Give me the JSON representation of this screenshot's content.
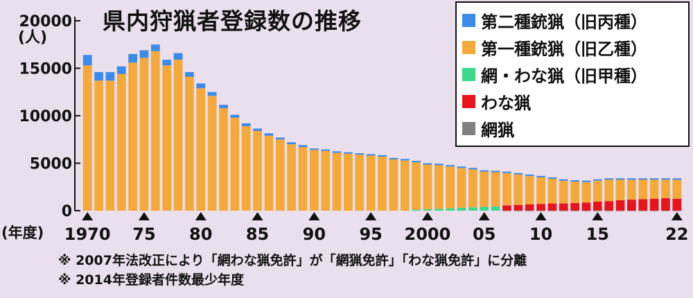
{
  "chart_data": {
    "type": "bar",
    "stacked": true,
    "title": "県内狩猟者登録数の推移",
    "ylabel": "(人)",
    "xlabel": "(年度)",
    "ylim": [
      0,
      20000
    ],
    "yticks": [
      0,
      5000,
      10000,
      15000,
      20000
    ],
    "xtick_labels": [
      {
        "year": 1970,
        "label": "1970"
      },
      {
        "year": 1975,
        "label": "75"
      },
      {
        "year": 1980,
        "label": "80"
      },
      {
        "year": 1985,
        "label": "85"
      },
      {
        "year": 1990,
        "label": "90"
      },
      {
        "year": 1995,
        "label": "95"
      },
      {
        "year": 2000,
        "label": "2000"
      },
      {
        "year": 2005,
        "label": "05"
      },
      {
        "year": 2010,
        "label": "10"
      },
      {
        "year": 2015,
        "label": "15"
      },
      {
        "year": 2022,
        "label": "22"
      }
    ],
    "years": [
      1970,
      1971,
      1972,
      1973,
      1974,
      1975,
      1976,
      1977,
      1978,
      1979,
      1980,
      1981,
      1982,
      1983,
      1984,
      1985,
      1986,
      1987,
      1988,
      1989,
      1990,
      1991,
      1992,
      1993,
      1994,
      1995,
      1996,
      1997,
      1998,
      1999,
      2000,
      2001,
      2002,
      2003,
      2004,
      2005,
      2006,
      2007,
      2008,
      2009,
      2010,
      2011,
      2012,
      2013,
      2014,
      2015,
      2016,
      2017,
      2018,
      2019,
      2020,
      2021,
      2022
    ],
    "legend_position": "top-right",
    "series": [
      {
        "name": "網猟",
        "color": "#808080",
        "values": [
          0,
          0,
          0,
          0,
          0,
          0,
          0,
          0,
          0,
          0,
          0,
          0,
          0,
          0,
          0,
          0,
          0,
          0,
          0,
          0,
          0,
          0,
          0,
          0,
          0,
          0,
          0,
          0,
          0,
          0,
          0,
          0,
          0,
          0,
          0,
          0,
          0,
          10,
          10,
          10,
          10,
          10,
          10,
          10,
          10,
          10,
          10,
          10,
          10,
          10,
          10,
          10,
          10
        ]
      },
      {
        "name": "わな猟",
        "color": "#e8141c",
        "values": [
          0,
          0,
          0,
          0,
          0,
          0,
          0,
          0,
          0,
          0,
          0,
          0,
          0,
          0,
          0,
          0,
          0,
          0,
          0,
          0,
          0,
          0,
          0,
          0,
          0,
          0,
          0,
          0,
          0,
          0,
          0,
          0,
          0,
          0,
          0,
          0,
          0,
          550,
          600,
          650,
          700,
          750,
          750,
          800,
          850,
          950,
          1000,
          1100,
          1150,
          1200,
          1250,
          1300,
          1250
        ]
      },
      {
        "name": "網・わな猟（旧甲種）",
        "color": "#3ed88a",
        "values": [
          0,
          0,
          0,
          0,
          0,
          0,
          0,
          0,
          0,
          0,
          0,
          0,
          0,
          0,
          0,
          0,
          0,
          0,
          0,
          0,
          0,
          0,
          0,
          0,
          0,
          0,
          0,
          0,
          0,
          100,
          150,
          200,
          250,
          300,
          350,
          400,
          450,
          0,
          0,
          0,
          0,
          0,
          0,
          0,
          0,
          0,
          0,
          0,
          0,
          0,
          0,
          0,
          0
        ]
      },
      {
        "name": "第一種銃猟（旧乙種）",
        "color": "#f5a93a",
        "values": [
          15300,
          13700,
          13700,
          14400,
          15600,
          16100,
          16800,
          15300,
          15900,
          14100,
          12900,
          12100,
          10800,
          9800,
          8900,
          8400,
          7900,
          7500,
          7000,
          6700,
          6400,
          6300,
          6100,
          6000,
          5900,
          5800,
          5700,
          5400,
          5300,
          5000,
          4700,
          4600,
          4400,
          4200,
          4000,
          3700,
          3600,
          3400,
          3200,
          3000,
          2800,
          2600,
          2400,
          2250,
          2150,
          2200,
          2250,
          2150,
          2100,
          2050,
          2000,
          1950,
          2000
        ]
      },
      {
        "name": "第二種銃猟（旧丙種）",
        "color": "#3c8be8",
        "values": [
          1100,
          900,
          900,
          800,
          900,
          800,
          700,
          600,
          700,
          500,
          500,
          400,
          350,
          300,
          300,
          250,
          250,
          200,
          200,
          200,
          150,
          150,
          150,
          150,
          150,
          150,
          150,
          150,
          150,
          150,
          150,
          150,
          150,
          150,
          150,
          150,
          150,
          150,
          150,
          150,
          150,
          150,
          150,
          150,
          150,
          150,
          150,
          150,
          150,
          150,
          150,
          150,
          150
        ]
      }
    ]
  },
  "legend": [
    {
      "label": "第二種銃猟（旧丙種）",
      "color": "#3c8be8"
    },
    {
      "label": "第一種銃猟（旧乙種）",
      "color": "#f5a93a"
    },
    {
      "label": "網・わな猟（旧甲種）",
      "color": "#3ed88a"
    },
    {
      "label": "わな猟",
      "color": "#e8141c"
    },
    {
      "label": "網猟",
      "color": "#808080"
    }
  ],
  "notes": [
    "※ 2007年法改正により「網わな猟免許」が「網猟免許」「わな猟免許」に分離",
    "※ 2014年登録者件数最少年度"
  ]
}
